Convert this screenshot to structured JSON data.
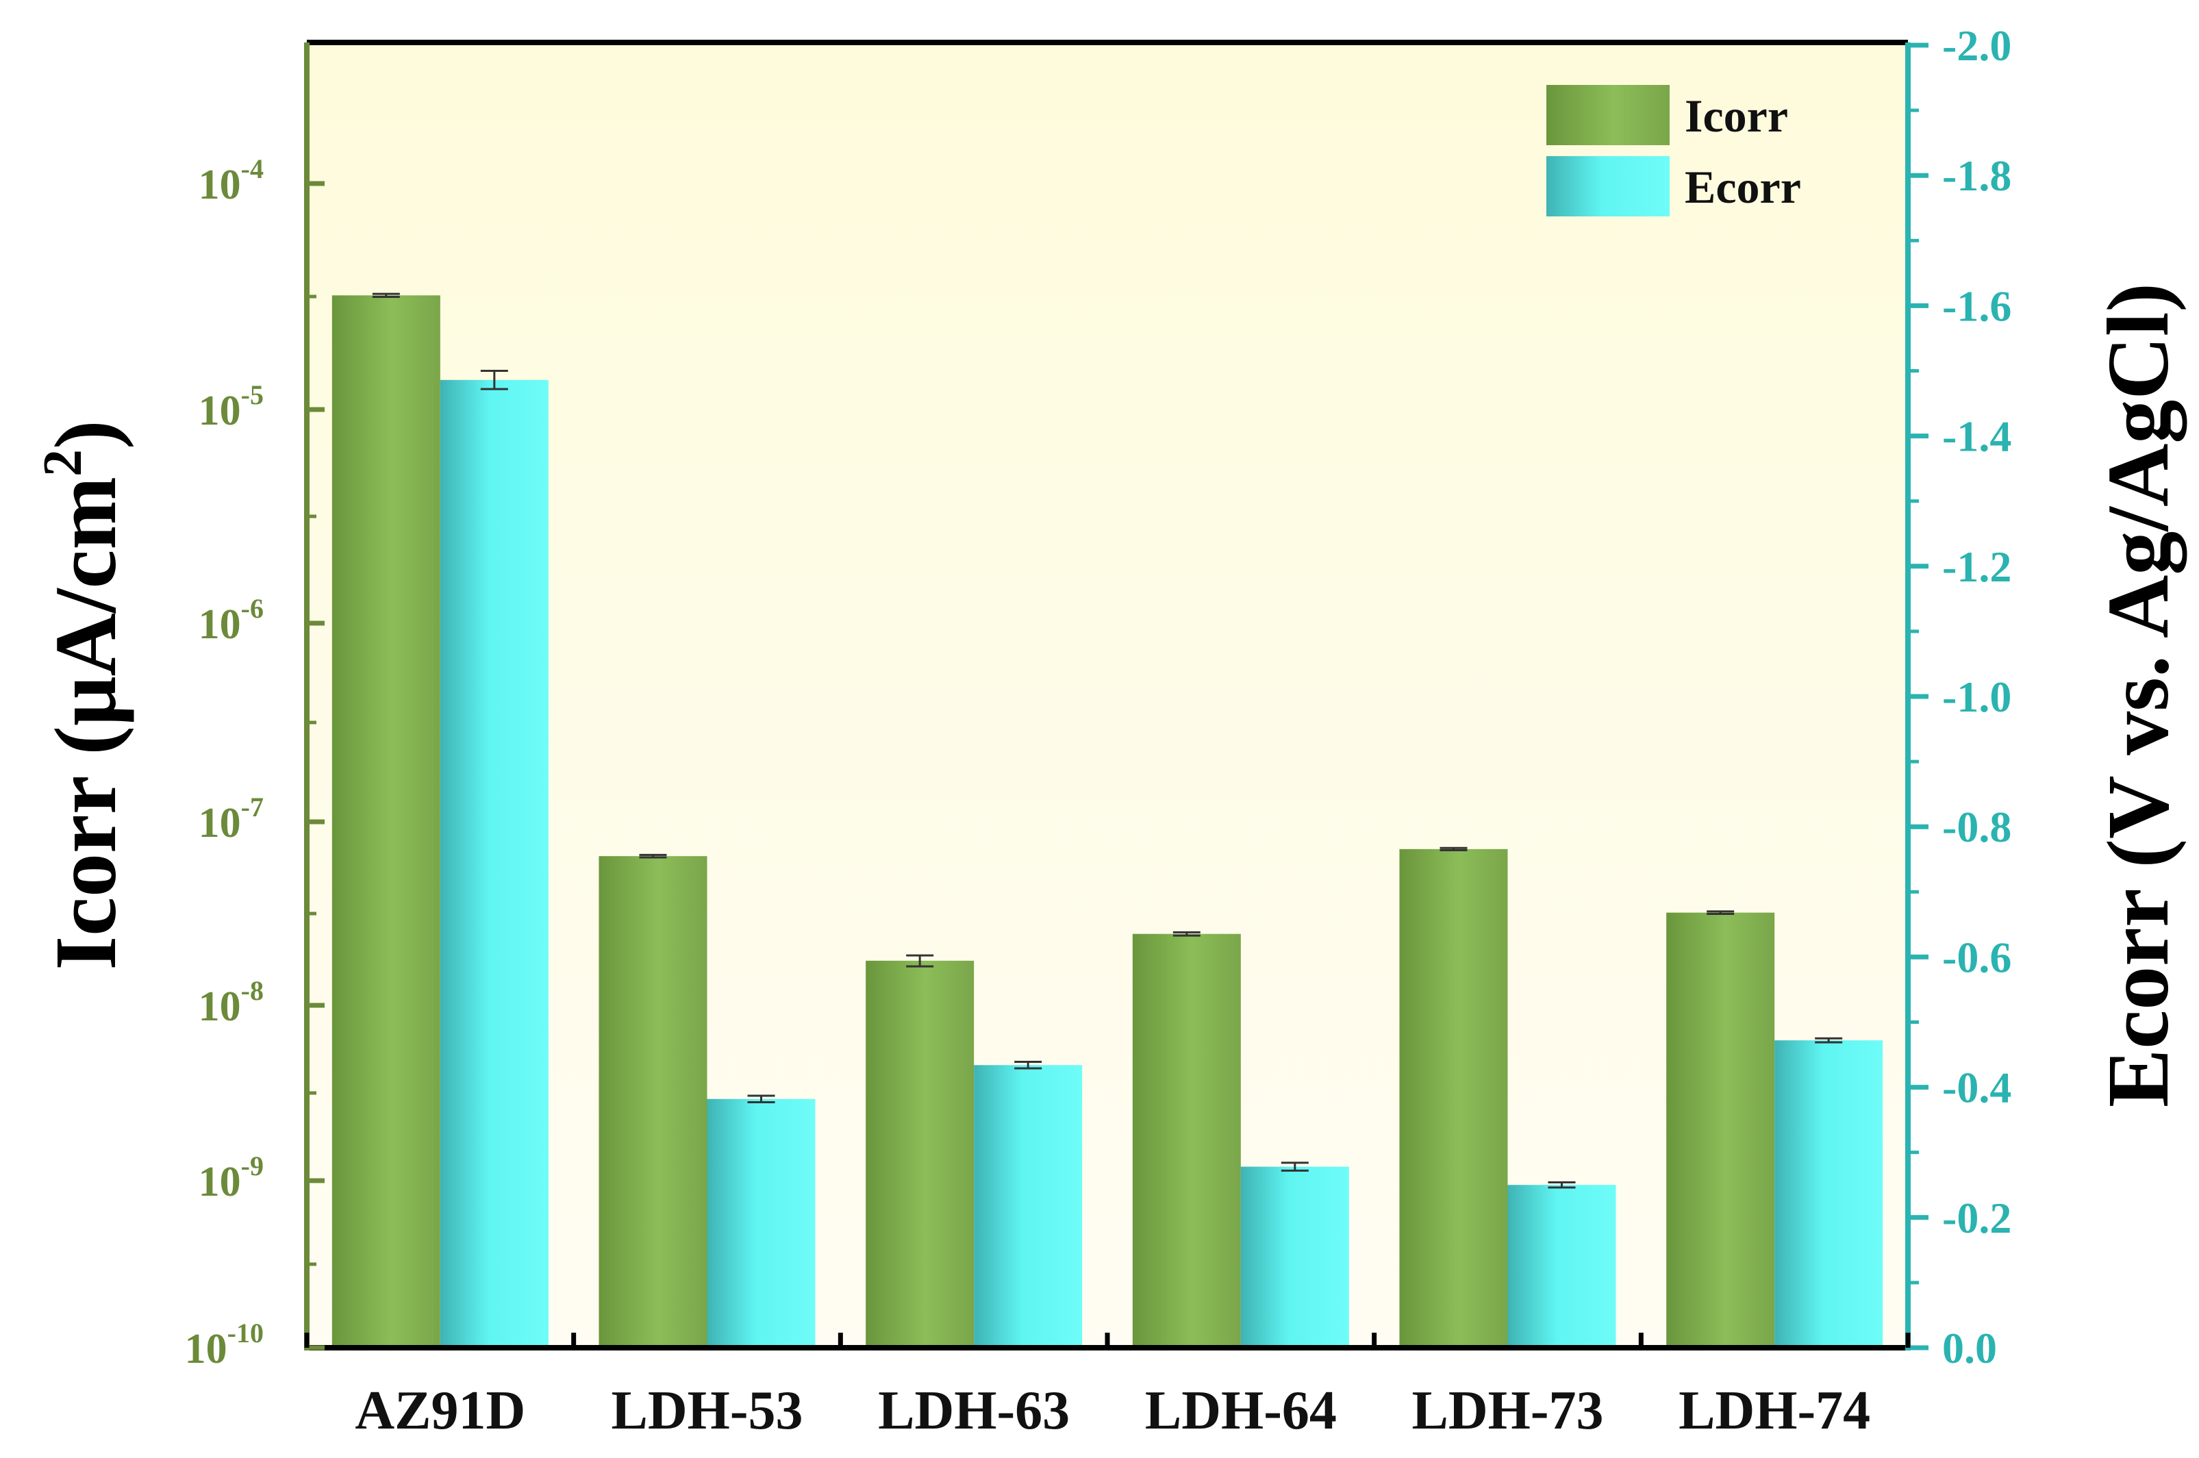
{
  "chart_data": {
    "type": "bar",
    "categories": [
      "AZ91D",
      "LDH-53",
      "LDH-63",
      "LDH-64",
      "LDH-73",
      "LDH-74"
    ],
    "series": [
      {
        "name": "Icorr",
        "axis": "left",
        "values": [
          3.2e-05,
          6.5e-08,
          1.75e-08,
          2.45e-08,
          7.1e-08,
          3.2e-08
        ],
        "errors": [
          5e-07,
          1e-09,
          1.2e-09,
          5e-10,
          1e-09,
          5e-10
        ]
      },
      {
        "name": "Ecorr",
        "axis": "right",
        "values": [
          -1.486,
          -0.382,
          -0.434,
          -0.278,
          -0.25,
          -0.472
        ],
        "errors": [
          0.014,
          0.005,
          0.005,
          0.006,
          0.004,
          0.003
        ]
      }
    ],
    "left_axis": {
      "label": "Icorr (μA/cm²)",
      "label_parts": {
        "main": "Icorr (μA/cm",
        "sup": "2",
        "end": ")"
      },
      "scale": "log",
      "ticks": [
        {
          "base": "10",
          "exp": "-10",
          "value": 1e-10
        },
        {
          "base": "10",
          "exp": "-9",
          "value": 1e-09
        },
        {
          "base": "10",
          "exp": "-8",
          "value": 1e-08
        },
        {
          "base": "10",
          "exp": "-7",
          "value": 1e-07
        },
        {
          "base": "10",
          "exp": "-6",
          "value": 1e-06
        },
        {
          "base": "10",
          "exp": "-5",
          "value": 1e-05
        },
        {
          "base": "10",
          "exp": "-4",
          "value": 0.0001
        }
      ]
    },
    "right_axis": {
      "label": "Ecorr (V vs. Ag/AgCl)",
      "scale": "linear",
      "range": [
        0.0,
        -2.0
      ],
      "ticks": [
        "0.0",
        "-0.2",
        "-0.4",
        "-0.6",
        "-0.8",
        "-1.0",
        "-1.2",
        "-1.4",
        "-1.6",
        "-1.8",
        "-2.0"
      ]
    },
    "legend": {
      "position": "top-right",
      "entries": [
        "Icorr",
        "Ecorr"
      ]
    },
    "grid": false
  },
  "colors": {
    "icorr": "#7aa64a",
    "ecorr": "#55f0ee",
    "left_axis": "#6b8a3a",
    "right_axis": "#2ab3b0",
    "background_top": "#fefbdc",
    "background_bottom": "#fffdf3"
  }
}
